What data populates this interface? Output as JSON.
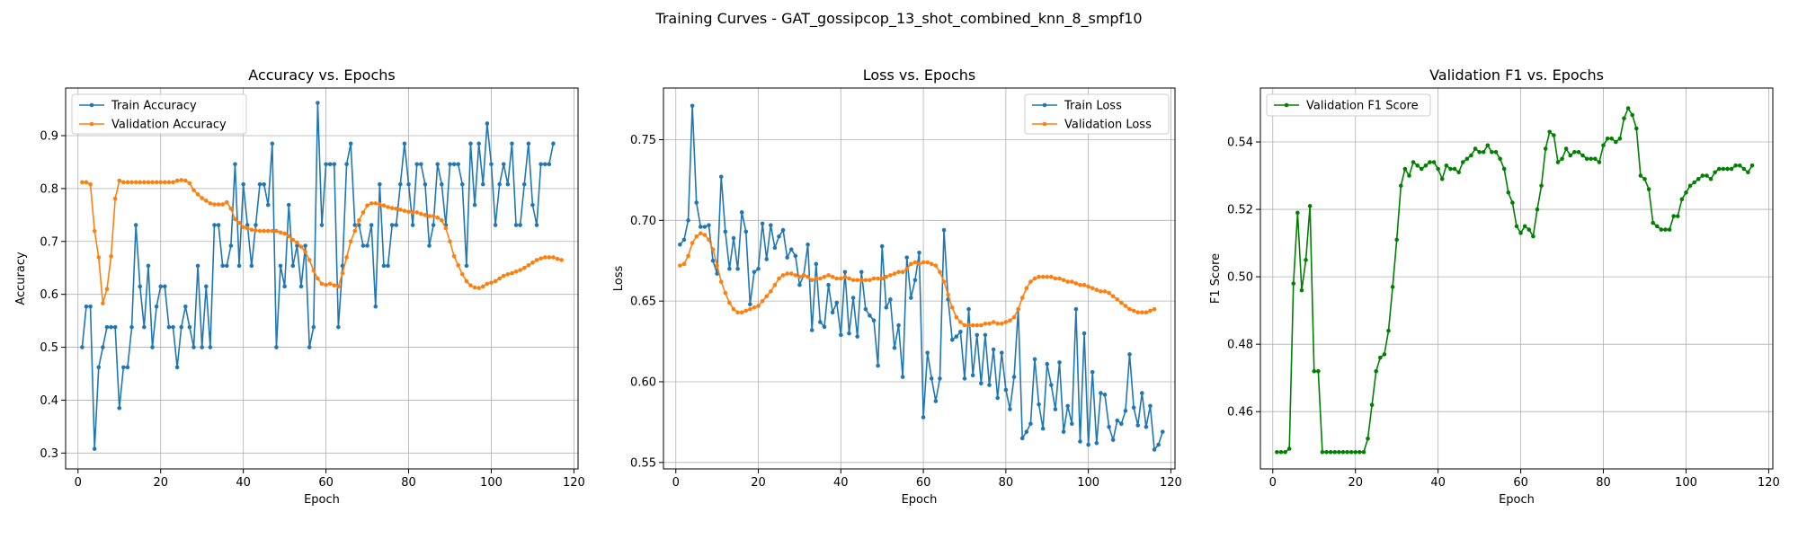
{
  "figure": {
    "suptitle": "Training Curves - GAT_gossipcop_13_shot_combined_knn_8_smpf10"
  },
  "chart_data": [
    {
      "type": "line",
      "title": "Accuracy vs. Epochs",
      "xlabel": "Epoch",
      "ylabel": "Accuracy",
      "xlim": [
        -3,
        121
      ],
      "ylim": [
        0.27,
        0.99
      ],
      "xticks": [
        0,
        20,
        40,
        60,
        80,
        100,
        120
      ],
      "yticks": [
        0.3,
        0.4,
        0.5,
        0.6,
        0.7,
        0.8,
        0.9
      ],
      "ytick_labels": [
        "0.3",
        "0.4",
        "0.5",
        "0.6",
        "0.7",
        "0.8",
        "0.9"
      ],
      "grid": true,
      "legend_position": "upper-left",
      "series": [
        {
          "name": "Train Accuracy",
          "color": "#1f77b4",
          "values": [
            0.5,
            0.577,
            0.577,
            0.308,
            0.462,
            0.5,
            0.538,
            0.538,
            0.538,
            0.385,
            0.462,
            0.462,
            0.538,
            0.731,
            0.615,
            0.538,
            0.654,
            0.5,
            0.577,
            0.615,
            0.615,
            0.538,
            0.538,
            0.462,
            0.538,
            0.577,
            0.538,
            0.5,
            0.654,
            0.5,
            0.615,
            0.5,
            0.731,
            0.731,
            0.654,
            0.654,
            0.692,
            0.846,
            0.654,
            0.808,
            0.731,
            0.654,
            0.731,
            0.808,
            0.808,
            0.769,
            0.885,
            0.5,
            0.654,
            0.615,
            0.769,
            0.654,
            0.692,
            0.615,
            0.692,
            0.5,
            0.538,
            0.962,
            0.731,
            0.846,
            0.846,
            0.846,
            0.538,
            0.654,
            0.846,
            0.885,
            0.731,
            0.731,
            0.692,
            0.692,
            0.731,
            0.577,
            0.808,
            0.654,
            0.654,
            0.731,
            0.731,
            0.808,
            0.885,
            0.808,
            0.731,
            0.846,
            0.846,
            0.808,
            0.692,
            0.731,
            0.846,
            0.808,
            0.731,
            0.846,
            0.846,
            0.846,
            0.808,
            0.654,
            0.885,
            0.769,
            0.885,
            0.808,
            0.923,
            0.846,
            0.731,
            0.808,
            0.846,
            0.808,
            0.885,
            0.731,
            0.731,
            0.808,
            0.885,
            0.769,
            0.731,
            0.846,
            0.846,
            0.846,
            0.885
          ]
        },
        {
          "name": "Validation Accuracy",
          "color": "#ff7f0e",
          "values": [
            0.812,
            0.812,
            0.808,
            0.72,
            0.67,
            0.583,
            0.61,
            0.672,
            0.781,
            0.815,
            0.812,
            0.812,
            0.812,
            0.812,
            0.812,
            0.812,
            0.812,
            0.812,
            0.812,
            0.812,
            0.812,
            0.812,
            0.812,
            0.815,
            0.816,
            0.815,
            0.81,
            0.797,
            0.789,
            0.782,
            0.777,
            0.772,
            0.77,
            0.77,
            0.77,
            0.774,
            0.762,
            0.742,
            0.735,
            0.727,
            0.725,
            0.722,
            0.721,
            0.72,
            0.72,
            0.72,
            0.72,
            0.72,
            0.717,
            0.715,
            0.71,
            0.703,
            0.698,
            0.69,
            0.68,
            0.665,
            0.645,
            0.63,
            0.62,
            0.618,
            0.62,
            0.617,
            0.615,
            0.64,
            0.67,
            0.7,
            0.72,
            0.74,
            0.755,
            0.768,
            0.772,
            0.772,
            0.77,
            0.768,
            0.765,
            0.763,
            0.762,
            0.76,
            0.758,
            0.756,
            0.755,
            0.755,
            0.752,
            0.75,
            0.748,
            0.748,
            0.745,
            0.74,
            0.725,
            0.7,
            0.672,
            0.655,
            0.638,
            0.625,
            0.617,
            0.613,
            0.612,
            0.615,
            0.62,
            0.622,
            0.625,
            0.63,
            0.635,
            0.638,
            0.64,
            0.643,
            0.646,
            0.65,
            0.655,
            0.66,
            0.665,
            0.668,
            0.67,
            0.67,
            0.67,
            0.667,
            0.665
          ]
        }
      ]
    },
    {
      "type": "line",
      "title": "Loss vs. Epochs",
      "xlabel": "Epoch",
      "ylabel": "Loss",
      "xlim": [
        -3,
        121
      ],
      "ylim": [
        0.546,
        0.782
      ],
      "xticks": [
        0,
        20,
        40,
        60,
        80,
        100,
        120
      ],
      "yticks": [
        0.55,
        0.6,
        0.65,
        0.7,
        0.75
      ],
      "ytick_labels": [
        "0.55",
        "0.60",
        "0.65",
        "0.70",
        "0.75"
      ],
      "grid": true,
      "legend_position": "upper-right",
      "series": [
        {
          "name": "Train Loss",
          "color": "#1f77b4",
          "values": [
            0.685,
            0.688,
            0.7,
            0.771,
            0.711,
            0.696,
            0.696,
            0.697,
            0.675,
            0.667,
            0.727,
            0.693,
            0.67,
            0.689,
            0.67,
            0.705,
            0.693,
            0.648,
            0.668,
            0.67,
            0.698,
            0.676,
            0.697,
            0.683,
            0.69,
            0.694,
            0.677,
            0.682,
            0.678,
            0.66,
            0.666,
            0.685,
            0.632,
            0.673,
            0.637,
            0.634,
            0.66,
            0.643,
            0.649,
            0.629,
            0.668,
            0.63,
            0.652,
            0.628,
            0.668,
            0.645,
            0.641,
            0.638,
            0.61,
            0.684,
            0.646,
            0.651,
            0.621,
            0.635,
            0.603,
            0.677,
            0.652,
            0.663,
            0.68,
            0.578,
            0.618,
            0.602,
            0.588,
            0.602,
            0.694,
            0.651,
            0.626,
            0.628,
            0.631,
            0.602,
            0.645,
            0.604,
            0.629,
            0.599,
            0.629,
            0.598,
            0.62,
            0.59,
            0.618,
            0.595,
            0.583,
            0.603,
            0.645,
            0.565,
            0.569,
            0.574,
            0.614,
            0.586,
            0.571,
            0.611,
            0.598,
            0.583,
            0.612,
            0.569,
            0.585,
            0.574,
            0.645,
            0.563,
            0.63,
            0.561,
            0.606,
            0.562,
            0.593,
            0.592,
            0.572,
            0.564,
            0.576,
            0.574,
            0.582,
            0.617,
            0.584,
            0.573,
            0.593,
            0.572,
            0.585,
            0.558,
            0.561,
            0.569
          ]
        },
        {
          "name": "Validation Loss",
          "color": "#ff7f0e",
          "values": [
            0.672,
            0.673,
            0.678,
            0.686,
            0.69,
            0.692,
            0.691,
            0.688,
            0.682,
            0.672,
            0.662,
            0.655,
            0.649,
            0.645,
            0.643,
            0.643,
            0.644,
            0.645,
            0.646,
            0.647,
            0.65,
            0.653,
            0.656,
            0.66,
            0.664,
            0.666,
            0.667,
            0.667,
            0.666,
            0.665,
            0.666,
            0.665,
            0.663,
            0.664,
            0.664,
            0.665,
            0.666,
            0.665,
            0.664,
            0.664,
            0.665,
            0.664,
            0.663,
            0.663,
            0.663,
            0.663,
            0.663,
            0.664,
            0.664,
            0.664,
            0.665,
            0.666,
            0.667,
            0.668,
            0.668,
            0.67,
            0.673,
            0.674,
            0.673,
            0.674,
            0.674,
            0.673,
            0.672,
            0.668,
            0.662,
            0.654,
            0.646,
            0.64,
            0.637,
            0.635,
            0.635,
            0.635,
            0.635,
            0.635,
            0.636,
            0.636,
            0.637,
            0.636,
            0.636,
            0.637,
            0.638,
            0.64,
            0.645,
            0.652,
            0.658,
            0.662,
            0.664,
            0.665,
            0.665,
            0.665,
            0.665,
            0.664,
            0.664,
            0.663,
            0.662,
            0.662,
            0.661,
            0.66,
            0.66,
            0.659,
            0.658,
            0.657,
            0.656,
            0.656,
            0.655,
            0.653,
            0.651,
            0.649,
            0.647,
            0.645,
            0.644,
            0.643,
            0.643,
            0.643,
            0.644,
            0.645
          ]
        }
      ]
    },
    {
      "type": "line",
      "title": "Validation F1 vs. Epochs",
      "xlabel": "Epoch",
      "ylabel": "F1 Score",
      "xlim": [
        -3,
        121
      ],
      "ylim": [
        0.443,
        0.556
      ],
      "xticks": [
        0,
        20,
        40,
        60,
        80,
        100,
        120
      ],
      "yticks": [
        0.46,
        0.48,
        0.5,
        0.52,
        0.54
      ],
      "ytick_labels": [
        "0.46",
        "0.48",
        "0.50",
        "0.52",
        "0.54"
      ],
      "grid": true,
      "legend_position": "upper-left",
      "series": [
        {
          "name": "Validation F1 Score",
          "color": "#008000",
          "values": [
            0.448,
            0.448,
            0.448,
            0.449,
            0.498,
            0.519,
            0.496,
            0.505,
            0.521,
            0.472,
            0.472,
            0.448,
            0.448,
            0.448,
            0.448,
            0.448,
            0.448,
            0.448,
            0.448,
            0.448,
            0.448,
            0.448,
            0.452,
            0.462,
            0.472,
            0.476,
            0.477,
            0.484,
            0.497,
            0.511,
            0.527,
            0.532,
            0.53,
            0.534,
            0.533,
            0.532,
            0.533,
            0.534,
            0.534,
            0.532,
            0.529,
            0.533,
            0.532,
            0.532,
            0.531,
            0.534,
            0.535,
            0.536,
            0.538,
            0.537,
            0.537,
            0.539,
            0.537,
            0.537,
            0.535,
            0.532,
            0.525,
            0.522,
            0.515,
            0.513,
            0.515,
            0.514,
            0.512,
            0.52,
            0.527,
            0.538,
            0.543,
            0.542,
            0.534,
            0.535,
            0.538,
            0.536,
            0.537,
            0.537,
            0.536,
            0.535,
            0.535,
            0.535,
            0.534,
            0.539,
            0.541,
            0.541,
            0.54,
            0.541,
            0.547,
            0.55,
            0.548,
            0.544,
            0.53,
            0.529,
            0.526,
            0.516,
            0.515,
            0.514,
            0.514,
            0.514,
            0.518,
            0.518,
            0.523,
            0.525,
            0.527,
            0.528,
            0.529,
            0.53,
            0.53,
            0.529,
            0.531,
            0.532,
            0.532,
            0.532,
            0.532,
            0.533,
            0.533,
            0.532,
            0.531,
            0.533
          ]
        }
      ]
    }
  ]
}
